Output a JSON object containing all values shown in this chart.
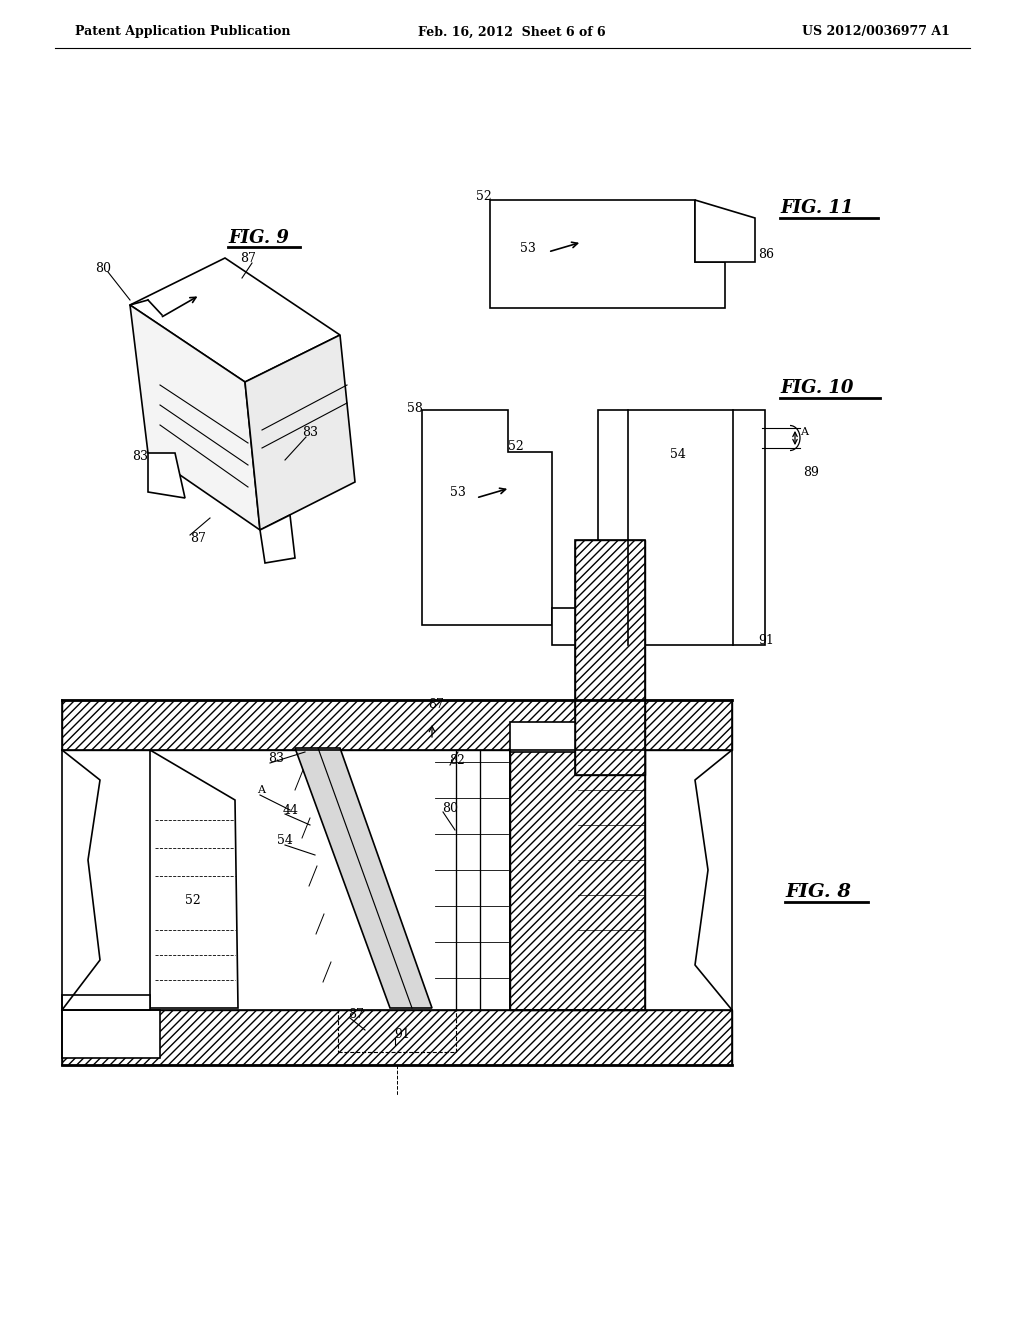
{
  "bg_color": "#ffffff",
  "header_left": "Patent Application Publication",
  "header_mid": "Feb. 16, 2012  Sheet 6 of 6",
  "header_right": "US 2012/0036977 A1",
  "line_color": "#000000",
  "line_width": 1.2,
  "thick_line": 2.0,
  "font_size_label": 9,
  "font_size_fig": 13,
  "font_size_header": 9
}
